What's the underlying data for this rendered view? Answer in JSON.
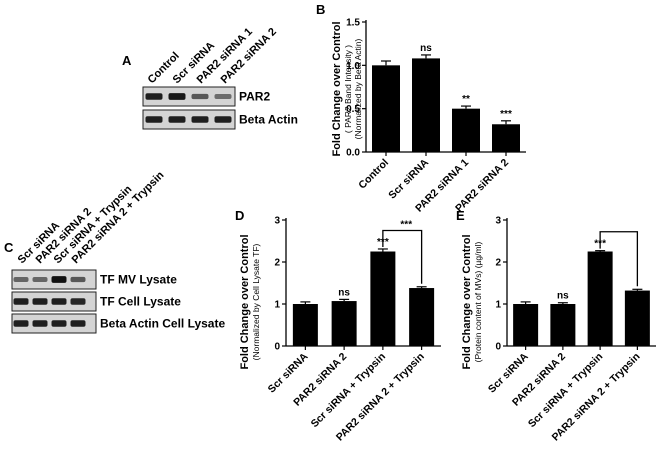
{
  "panels": {
    "A": {
      "label": "A",
      "lanes": [
        "Control",
        "Scr siRNA",
        "PAR2 siRNA 1",
        "PAR2 siRNA 2"
      ],
      "blots": [
        {
          "name": "PAR2",
          "intensities": [
            0.85,
            0.9,
            0.45,
            0.3
          ]
        },
        {
          "name": "Beta Actin",
          "intensities": [
            0.85,
            0.85,
            0.85,
            0.85
          ]
        }
      ]
    },
    "C": {
      "label": "C",
      "lanes": [
        "Scr siRNA",
        "PAR2 siRNA 2",
        "Scr siRNA + Trypsin",
        "PAR2 siRNA 2 + Trypsin"
      ],
      "blots": [
        {
          "name": "TF MV Lysate",
          "intensities": [
            0.35,
            0.35,
            0.95,
            0.45
          ]
        },
        {
          "name": "TF Cell Lysate",
          "intensities": [
            0.85,
            0.85,
            0.85,
            0.8
          ]
        },
        {
          "name": "Beta Actin Cell Lysate",
          "intensities": [
            0.85,
            0.85,
            0.85,
            0.85
          ]
        }
      ]
    }
  },
  "chart_data": [
    {
      "panel": "B",
      "type": "bar",
      "ylabel": "Fold Change over Control",
      "ylabel_sub1": "( PAR2 Band Intensity )",
      "ylabel_sub2": "(Normalized by Beta Actin)",
      "categories": [
        "Control",
        "Scr siRNA",
        "PAR2 siRNA 1",
        "PAR2 siRNA 2"
      ],
      "values": [
        1.0,
        1.08,
        0.5,
        0.32
      ],
      "errors": [
        0.05,
        0.04,
        0.03,
        0.04
      ],
      "annotations": [
        "",
        "ns",
        "**",
        "***"
      ],
      "ylim": [
        0,
        1.5
      ],
      "yticks": [
        "0.0",
        "0.5",
        "1.0",
        "1.5"
      ]
    },
    {
      "panel": "D",
      "type": "bar",
      "ylabel": "Fold Change over Control",
      "ylabel_sub1": "(Normalized by Cell Lysate TF)",
      "categories": [
        "Scr siRNA",
        "PAR2 siRNA 2",
        "Scr siRNA + Trypsin",
        "PAR2 siRNA 2 + Trypsin"
      ],
      "values": [
        1.0,
        1.07,
        2.25,
        1.38
      ],
      "errors": [
        0.05,
        0.04,
        0.06,
        0.03
      ],
      "annotations": [
        "",
        "ns",
        "***",
        ""
      ],
      "bracket_label": "***",
      "ylim": [
        0,
        3
      ],
      "yticks": [
        "0",
        "1",
        "2",
        "3"
      ]
    },
    {
      "panel": "E",
      "type": "bar",
      "ylabel": "Fold Change over Control",
      "ylabel_sub1": "(Protein content of MVs) (µg/ml)",
      "categories": [
        "Scr siRNA",
        "PAR2 siRNA 2",
        "Scr siRNA + Trypsin",
        "PAR2 siRNA 2 + Trypsin"
      ],
      "values": [
        1.0,
        1.0,
        2.25,
        1.32
      ],
      "errors": [
        0.05,
        0.03,
        0.02,
        0.03
      ],
      "annotations": [
        "",
        "ns",
        "***",
        ""
      ],
      "bracket_label": "",
      "ylim": [
        0,
        3
      ],
      "yticks": [
        "0",
        "1",
        "2",
        "3"
      ]
    }
  ]
}
